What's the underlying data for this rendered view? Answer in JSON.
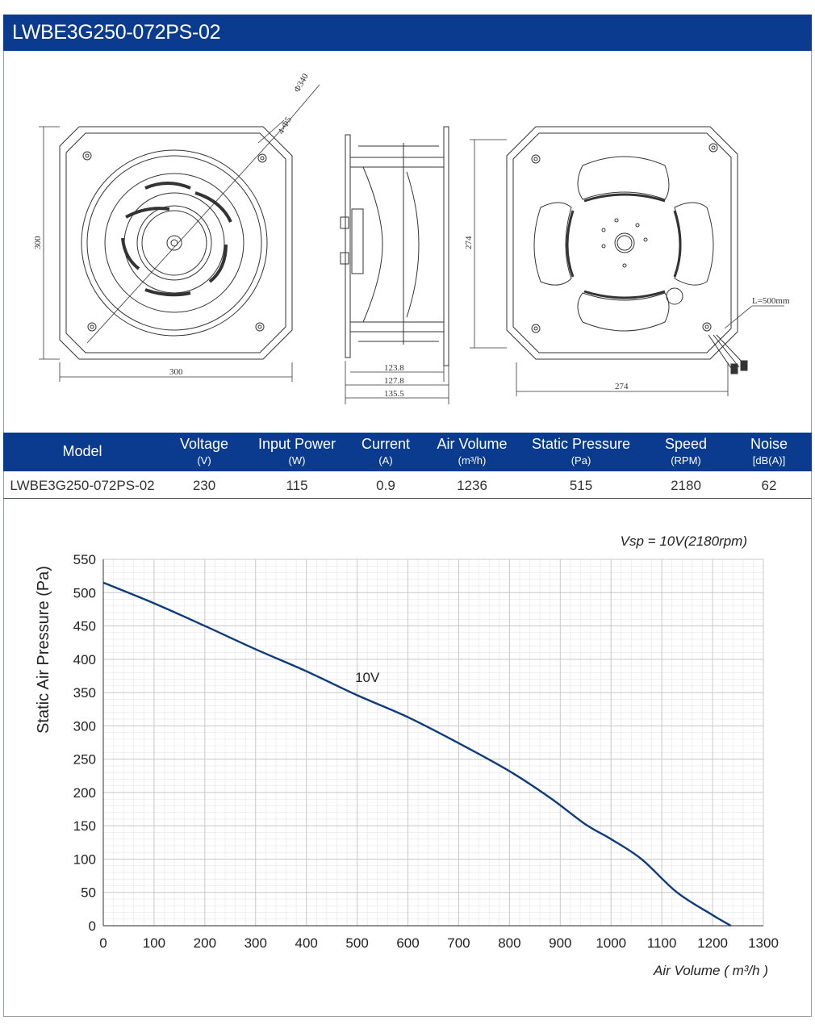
{
  "header": {
    "title": "LWBE3G250-072PS-02"
  },
  "drawing": {
    "dim_diameter": "Φ340",
    "dim_holes": "4-Φ5",
    "dim_front_height": "300",
    "dim_front_width": "300",
    "dim_side_1": "123.8",
    "dim_side_2": "127.8",
    "dim_side_3": "135.5",
    "dim_back_height": "274",
    "dim_back_width": "274",
    "dim_cable": "L=500mm"
  },
  "spec_table": {
    "columns": [
      {
        "label": "Model",
        "unit": ""
      },
      {
        "label": "Voltage",
        "unit": "(V)"
      },
      {
        "label": "Input Power",
        "unit": "(W)"
      },
      {
        "label": "Current",
        "unit": "(A)"
      },
      {
        "label": "Air Volume",
        "unit": "(m³/h)"
      },
      {
        "label": "Static Pressure",
        "unit": "(Pa)"
      },
      {
        "label": "Speed",
        "unit": "(RPM)"
      },
      {
        "label": "Noise",
        "unit": "[dB(A)]"
      }
    ],
    "row": [
      "LWBE3G250-072PS-02",
      "230",
      "115",
      "0.9",
      "1236",
      "515",
      "2180",
      "62"
    ]
  },
  "chart_data": {
    "type": "line",
    "title": "",
    "annotation": "Vsp = 10V(2180rpm)",
    "xlabel": "Air Volume ( m³/h )",
    "ylabel": "Static Air Pressure  (Pa)",
    "xlim": [
      0,
      1300
    ],
    "ylim": [
      0,
      550
    ],
    "x_ticks": [
      0,
      100,
      200,
      300,
      400,
      500,
      600,
      700,
      800,
      900,
      1000,
      1100,
      1200,
      1300
    ],
    "y_ticks": [
      0,
      50,
      100,
      150,
      200,
      250,
      300,
      350,
      400,
      450,
      500,
      550
    ],
    "grid": true,
    "line_color": "#0e3b7a",
    "series": [
      {
        "name": "10V",
        "x": [
          0,
          100,
          200,
          300,
          400,
          500,
          600,
          700,
          800,
          880,
          950,
          1000,
          1060,
          1130,
          1200,
          1236
        ],
        "y": [
          515,
          484,
          450,
          415,
          382,
          346,
          313,
          274,
          232,
          192,
          152,
          130,
          100,
          50,
          16,
          0
        ]
      }
    ]
  }
}
